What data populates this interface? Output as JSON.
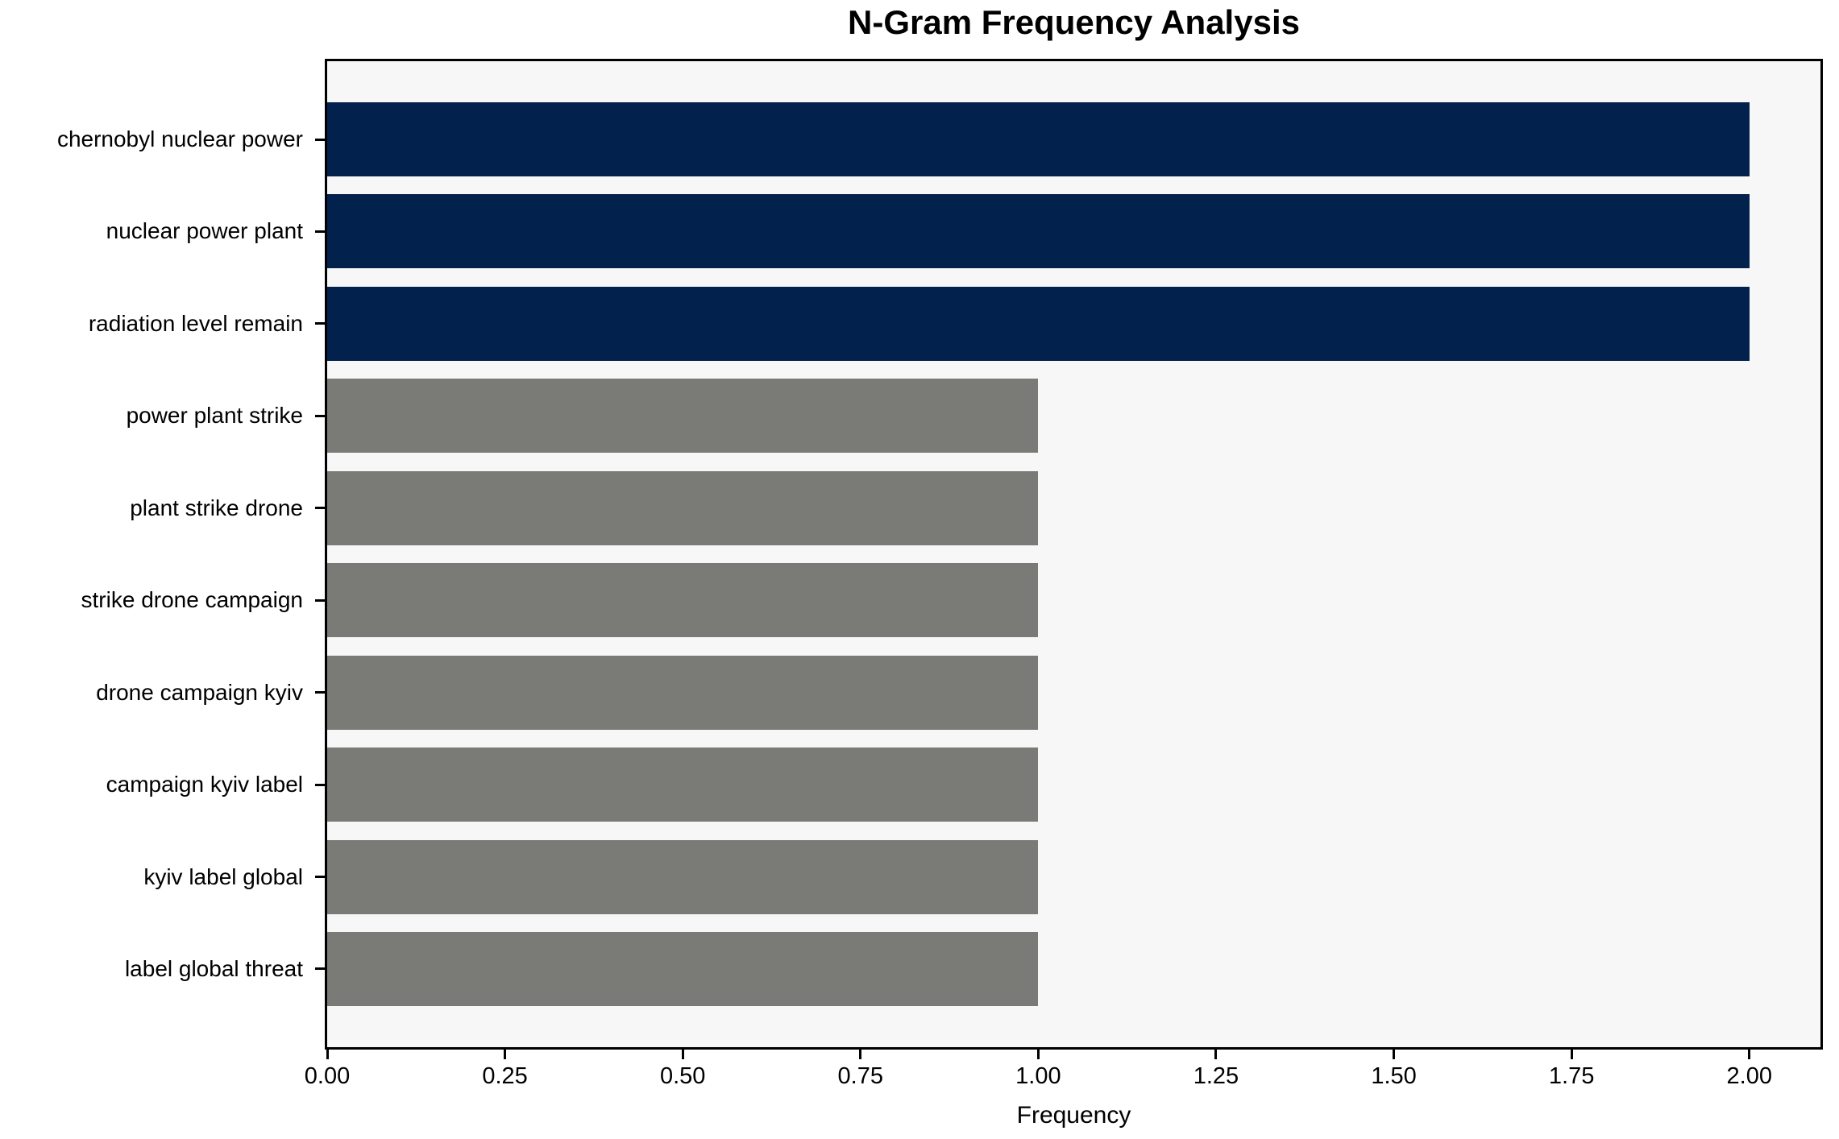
{
  "chart_data": {
    "type": "bar",
    "orientation": "horizontal",
    "title": "N-Gram Frequency Analysis",
    "xlabel": "Frequency",
    "ylabel": "",
    "categories": [
      "chernobyl nuclear power",
      "nuclear power plant",
      "radiation level remain",
      "power plant strike",
      "plant strike drone",
      "strike drone campaign",
      "drone campaign kyiv",
      "campaign kyiv label",
      "kyiv label global",
      "label global threat"
    ],
    "values": [
      2,
      2,
      2,
      1,
      1,
      1,
      1,
      1,
      1,
      1
    ],
    "bar_colors": [
      "#02214d",
      "#02214d",
      "#02214d",
      "#7a7a76",
      "#7a7a76",
      "#7a7a76",
      "#7a7a76",
      "#7a7a76",
      "#7a7a76",
      "#7a7a76"
    ],
    "xlim": [
      0,
      2.1
    ],
    "x_ticks": [
      0.0,
      0.25,
      0.5,
      0.75,
      1.0,
      1.25,
      1.5,
      1.75,
      2.0
    ],
    "x_tick_labels": [
      "0.00",
      "0.25",
      "0.50",
      "0.75",
      "1.00",
      "1.25",
      "1.50",
      "1.75",
      "2.00"
    ],
    "grid": false,
    "legend": null,
    "colors": {
      "highlight": "#02214d",
      "base": "#7a7a76",
      "plot_background": "#f7f7f7",
      "figure_background": "#ffffff",
      "axis": "#000000",
      "text": "#000000"
    }
  }
}
